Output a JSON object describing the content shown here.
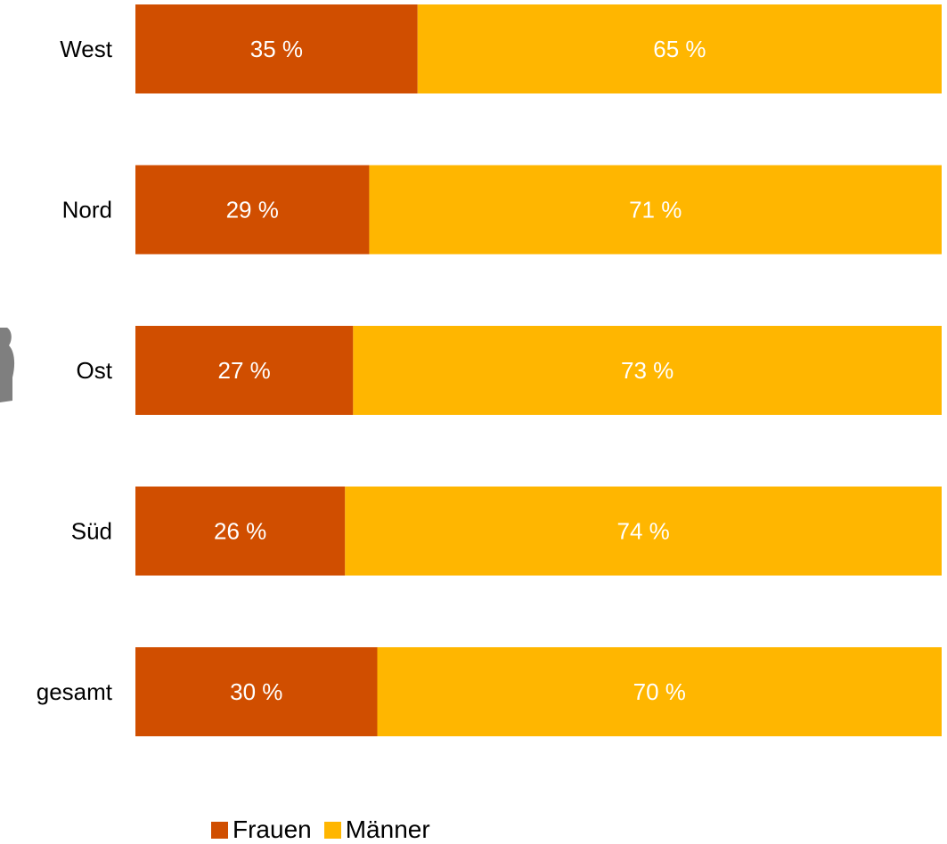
{
  "chart_data": {
    "type": "bar",
    "orientation": "horizontal",
    "stacked": true,
    "normalized_percent": true,
    "categories": [
      "West",
      "Nord",
      "Ost",
      "Süd",
      "gesamt"
    ],
    "series": [
      {
        "name": "Frauen",
        "color": "#D04E00",
        "values": [
          35,
          29,
          27,
          26,
          30
        ],
        "labels": [
          "35 %",
          "29 %",
          "27 %",
          "26 %",
          "30 %"
        ]
      },
      {
        "name": "Männer",
        "color": "#FFB600",
        "values": [
          65,
          71,
          73,
          74,
          70
        ],
        "labels": [
          "65 %",
          "71 %",
          "73 %",
          "74 %",
          "70 %"
        ]
      }
    ],
    "xlim": [
      0,
      100
    ],
    "grid": false,
    "legend_position": "bottom-center"
  },
  "legend": {
    "frauen_label": "Frauen",
    "maenner_label": "Männer"
  },
  "icons": {
    "person": "person-silhouette-icon"
  }
}
